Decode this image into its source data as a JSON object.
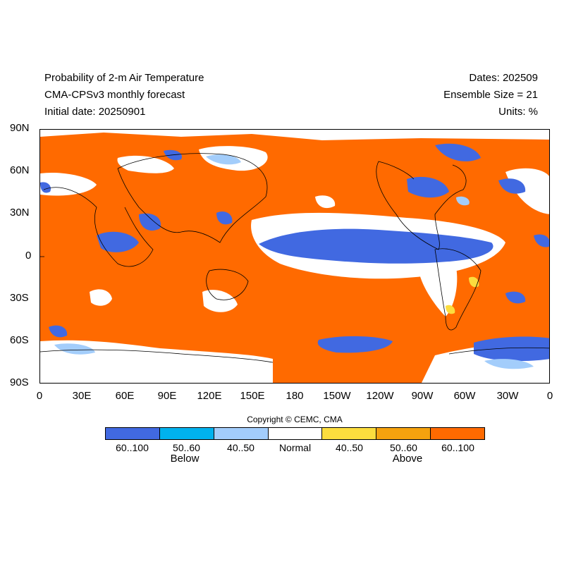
{
  "header": {
    "title": "Probability of 2-m Air Temperature",
    "model": "CMA-CPSv3 monthly forecast",
    "initial_date": "Initial date: 20250901",
    "dates": "Dates: 202509",
    "ensemble": "Ensemble Size = 21",
    "units": "Units: %"
  },
  "axes": {
    "y_ticks": [
      "90N",
      "60N",
      "30N",
      "0",
      "30S",
      "60S",
      "90S"
    ],
    "x_ticks": [
      "0",
      "30E",
      "60E",
      "90E",
      "120E",
      "150E",
      "180",
      "150W",
      "120W",
      "90W",
      "60W",
      "30W",
      "0"
    ]
  },
  "copyright": "Copyright © CEMC, CMA",
  "legend": {
    "colors": [
      "#4169e1",
      "#00b2ee",
      "#a3cdfb",
      "#ffffff",
      "#fcdd3e",
      "#f5a20e",
      "#ff6a00"
    ],
    "labels": [
      "60..100",
      "50..60",
      "40..50",
      "Normal",
      "40..50",
      "50..60",
      "60..100"
    ],
    "below_label": "Below",
    "above_label": "Above"
  },
  "map": {
    "background_color": "#ff6a00",
    "white_color": "#ffffff",
    "blue_color": "#4169e1",
    "light_blue_color": "#a3cdfb",
    "yellow_color": "#fcdd3e"
  }
}
